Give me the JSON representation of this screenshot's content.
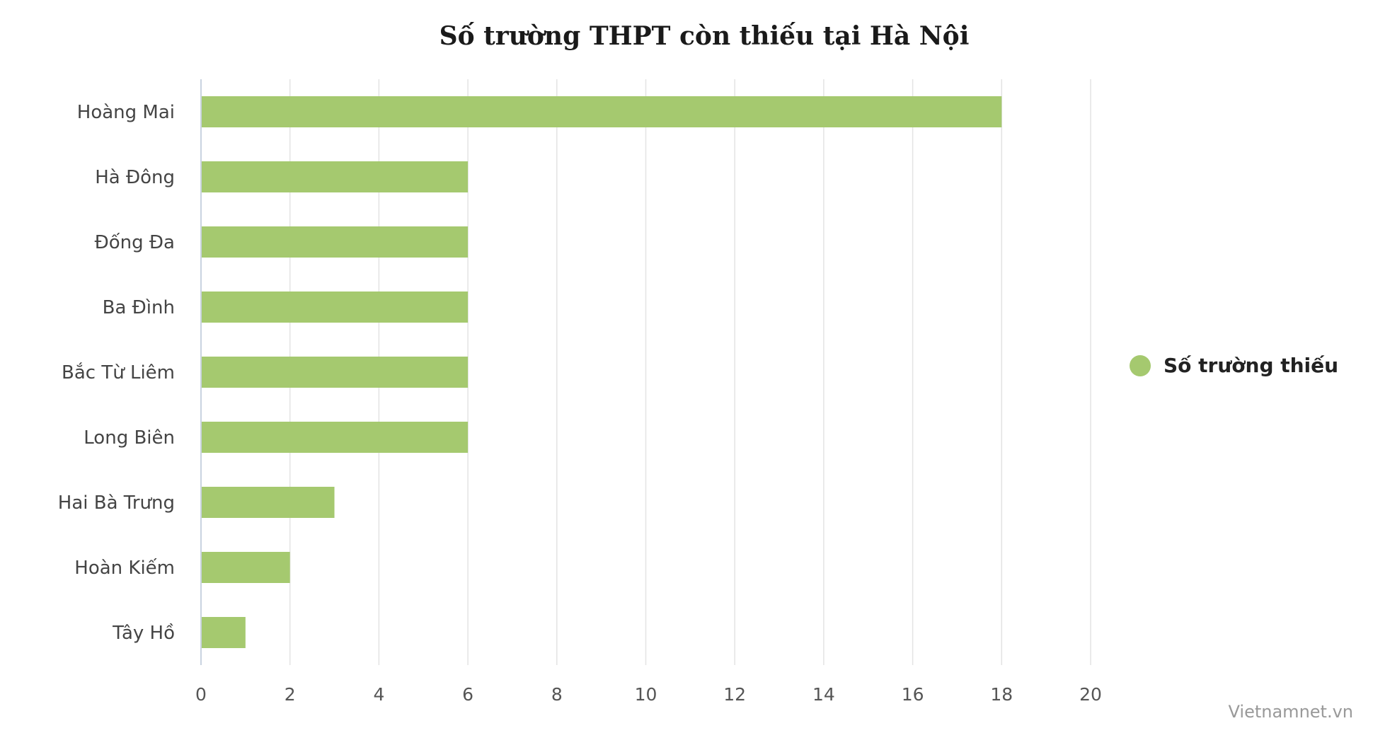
{
  "chart_data": {
    "type": "bar",
    "orientation": "horizontal",
    "title": "Số trường THPT còn thiếu tại Hà Nội",
    "categories": [
      "Hoàng Mai",
      "Hà Đông",
      "Đống Đa",
      "Ba Đình",
      "Bắc Từ Liêm",
      "Long Biên",
      "Hai Bà Trưng",
      "Hoàn Kiếm",
      "Tây Hồ"
    ],
    "series": [
      {
        "name": "Số trường thiếu",
        "values": [
          18,
          6,
          6,
          6,
          6,
          6,
          3,
          2,
          1
        ],
        "color": "#a5c96f"
      }
    ],
    "xlabel": "",
    "ylabel": "",
    "xlim": [
      0,
      20
    ],
    "xticks": [
      0,
      2,
      4,
      6,
      8,
      10,
      12,
      14,
      16,
      18,
      20
    ],
    "grid": true,
    "legend_position": "right"
  },
  "credit": "Vietnamnet.vn"
}
